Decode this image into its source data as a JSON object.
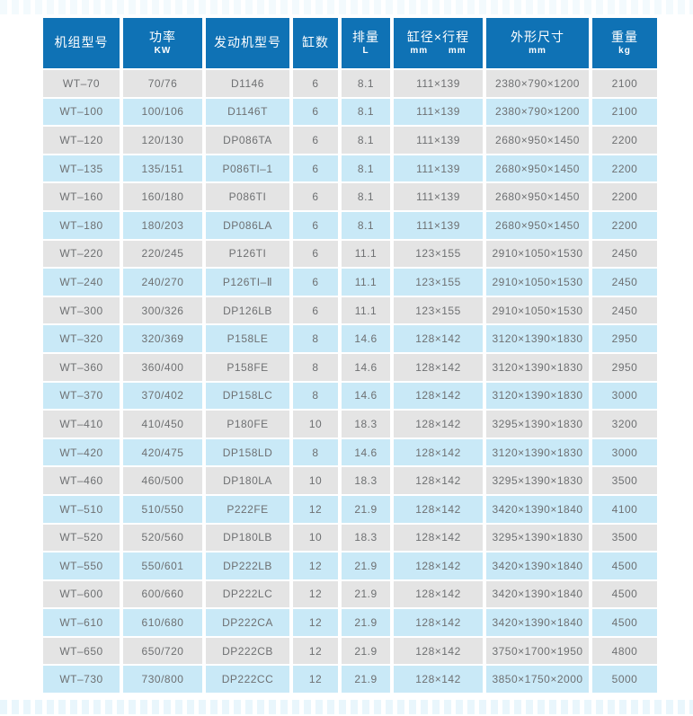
{
  "colors": {
    "header_bg": "#0f72b5",
    "header_text": "#ffffff",
    "row_gray": "#e4e4e4",
    "row_blue": "#c9e9f7",
    "cell_text": "#6e7072"
  },
  "table": {
    "columns": [
      {
        "id": "model",
        "label": "机组型号",
        "sub": ""
      },
      {
        "id": "power",
        "label": "功率",
        "sub": "KW"
      },
      {
        "id": "engine",
        "label": "发动机型号",
        "sub": ""
      },
      {
        "id": "cylinders",
        "label": "缸数",
        "sub": ""
      },
      {
        "id": "displacement",
        "label": "排量",
        "sub": "L"
      },
      {
        "id": "bore-stroke",
        "label": "缸径×行程",
        "sub": "mm      mm"
      },
      {
        "id": "dimensions",
        "label": "外形尺寸",
        "sub": "mm"
      },
      {
        "id": "weight",
        "label": "重量",
        "sub": "kg"
      }
    ],
    "rows": [
      [
        "WT–70",
        "70/76",
        "D1146",
        "6",
        "8.1",
        "111×139",
        "2380×790×1200",
        "2100"
      ],
      [
        "WT–100",
        "100/106",
        "D1146T",
        "6",
        "8.1",
        "111×139",
        "2380×790×1200",
        "2100"
      ],
      [
        "WT–120",
        "120/130",
        "DP086TA",
        "6",
        "8.1",
        "111×139",
        "2680×950×1450",
        "2200"
      ],
      [
        "WT–135",
        "135/151",
        "P086TI–1",
        "6",
        "8.1",
        "111×139",
        "2680×950×1450",
        "2200"
      ],
      [
        "WT–160",
        "160/180",
        "P086TI",
        "6",
        "8.1",
        "111×139",
        "2680×950×1450",
        "2200"
      ],
      [
        "WT–180",
        "180/203",
        "DP086LA",
        "6",
        "8.1",
        "111×139",
        "2680×950×1450",
        "2200"
      ],
      [
        "WT–220",
        "220/245",
        "P126TI",
        "6",
        "11.1",
        "123×155",
        "2910×1050×1530",
        "2450"
      ],
      [
        "WT–240",
        "240/270",
        "P126TI–Ⅱ",
        "6",
        "11.1",
        "123×155",
        "2910×1050×1530",
        "2450"
      ],
      [
        "WT–300",
        "300/326",
        "DP126LB",
        "6",
        "11.1",
        "123×155",
        "2910×1050×1530",
        "2450"
      ],
      [
        "WT–320",
        "320/369",
        "P158LE",
        "8",
        "14.6",
        "128×142",
        "3120×1390×1830",
        "2950"
      ],
      [
        "WT–360",
        "360/400",
        "P158FE",
        "8",
        "14.6",
        "128×142",
        "3120×1390×1830",
        "2950"
      ],
      [
        "WT–370",
        "370/402",
        "DP158LC",
        "8",
        "14.6",
        "128×142",
        "3120×1390×1830",
        "3000"
      ],
      [
        "WT–410",
        "410/450",
        "P180FE",
        "10",
        "18.3",
        "128×142",
        "3295×1390×1830",
        "3200"
      ],
      [
        "WT–420",
        "420/475",
        "DP158LD",
        "8",
        "14.6",
        "128×142",
        "3120×1390×1830",
        "3000"
      ],
      [
        "WT–460",
        "460/500",
        "DP180LA",
        "10",
        "18.3",
        "128×142",
        "3295×1390×1830",
        "3500"
      ],
      [
        "WT–510",
        "510/550",
        "P222FE",
        "12",
        "21.9",
        "128×142",
        "3420×1390×1840",
        "4100"
      ],
      [
        "WT–520",
        "520/560",
        "DP180LB",
        "10",
        "18.3",
        "128×142",
        "3295×1390×1830",
        "3500"
      ],
      [
        "WT–550",
        "550/601",
        "DP222LB",
        "12",
        "21.9",
        "128×142",
        "3420×1390×1840",
        "4500"
      ],
      [
        "WT–600",
        "600/660",
        "DP222LC",
        "12",
        "21.9",
        "128×142",
        "3420×1390×1840",
        "4500"
      ],
      [
        "WT–610",
        "610/680",
        "DP222CA",
        "12",
        "21.9",
        "128×142",
        "3420×1390×1840",
        "4500"
      ],
      [
        "WT–650",
        "650/720",
        "DP222CB",
        "12",
        "21.9",
        "128×142",
        "3750×1700×1950",
        "4800"
      ],
      [
        "WT–730",
        "730/800",
        "DP222CC",
        "12",
        "21.9",
        "128×142",
        "3850×1750×2000",
        "5000"
      ]
    ]
  }
}
